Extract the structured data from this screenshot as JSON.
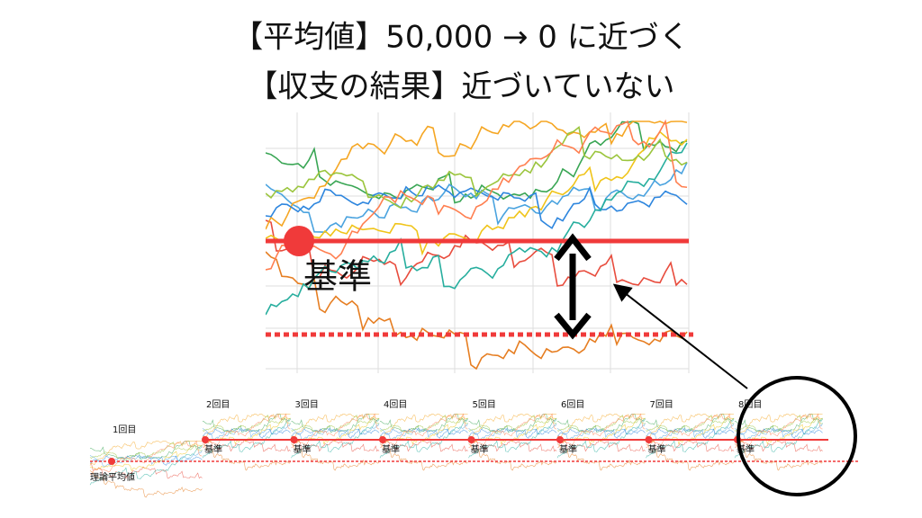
{
  "title": {
    "line1": "【平均値】50,000 → 0 に近づく",
    "line2": "【収支の結果】近づいていない"
  },
  "main_chart": {
    "baseline_label": "基準"
  },
  "thumbnails": [
    {
      "label": "1回目",
      "note": "理論平均値"
    },
    {
      "label": "2回目",
      "baseline_label": "基準"
    },
    {
      "label": "3回目",
      "baseline_label": "基準"
    },
    {
      "label": "4回目",
      "baseline_label": "基準"
    },
    {
      "label": "5回目",
      "baseline_label": "基準"
    },
    {
      "label": "6回目",
      "baseline_label": "基準"
    },
    {
      "label": "7回目",
      "baseline_label": "基準"
    },
    {
      "label": "8回目",
      "baseline_label": "基準"
    }
  ]
}
